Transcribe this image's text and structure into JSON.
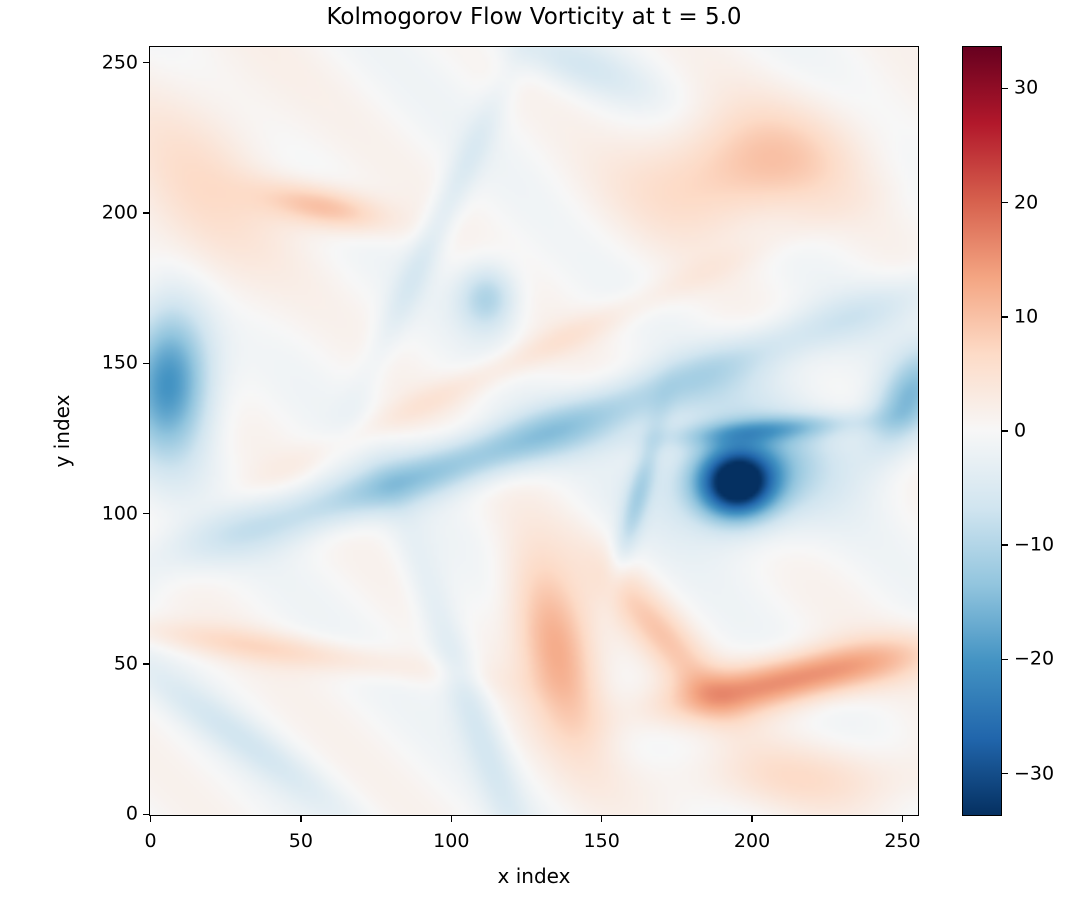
{
  "chart_data": {
    "type": "heatmap",
    "title": "Kolmogorov Flow Vorticity at t = 5.0",
    "xlabel": "x index",
    "ylabel": "y index",
    "grid_size": [
      256,
      256
    ],
    "xlim": [
      -0.5,
      255.5
    ],
    "ylim": [
      -0.5,
      255.5
    ],
    "origin": "lower",
    "grid": false,
    "colormap": "RdBu_r",
    "colormap_stops": [
      "#053061",
      "#2166ac",
      "#4393c3",
      "#92c5de",
      "#d1e5f0",
      "#f7f7f7",
      "#fddbc7",
      "#f4a582",
      "#d6604d",
      "#b2182b",
      "#67001f"
    ],
    "vmin": -33.7,
    "vmax": 33.7,
    "xticks": [
      0,
      50,
      100,
      150,
      200,
      250
    ],
    "yticks": [
      0,
      50,
      100,
      150,
      200,
      250
    ],
    "colorbar_ticks": [
      30,
      20,
      10,
      0,
      -10,
      -20,
      -30
    ],
    "colorbar_tick_labels": [
      "30",
      "20",
      "10",
      "0",
      "−10",
      "−20",
      "−30"
    ],
    "features": [
      {
        "label": "strong negative vortex core",
        "x": 195,
        "y": 110,
        "amp": -33,
        "sx": 9,
        "sy": 8,
        "angle": 0
      },
      {
        "label": "vortex halo",
        "x": 200,
        "y": 115,
        "amp": -12,
        "sx": 22,
        "sy": 14,
        "angle": 10
      },
      {
        "label": "spiral arm upper",
        "x": 205,
        "y": 128,
        "amp": -10,
        "sx": 22,
        "sy": 3,
        "angle": 5
      },
      {
        "label": "spiral arm left",
        "x": 162,
        "y": 105,
        "amp": -8,
        "sx": 3,
        "sy": 18,
        "angle": -15
      },
      {
        "label": "right edge negative",
        "x": 252,
        "y": 138,
        "amp": -14,
        "sx": 7,
        "sy": 14,
        "angle": -30
      },
      {
        "label": "left edge negative vortex",
        "x": 6,
        "y": 145,
        "amp": -22,
        "sx": 10,
        "sy": 18,
        "angle": 0
      },
      {
        "label": "diagonal negative band",
        "x": 150,
        "y": 135,
        "amp": -9,
        "sx": 95,
        "sy": 6,
        "angle": 20
      },
      {
        "label": "diagonal negative band lower",
        "x": 100,
        "y": 115,
        "amp": -6,
        "sx": 70,
        "sy": 6,
        "angle": 15
      },
      {
        "label": "small negative blob",
        "x": 112,
        "y": 172,
        "amp": -11,
        "sx": 7,
        "sy": 8,
        "angle": 0
      },
      {
        "label": "negative filament",
        "x": 95,
        "y": 195,
        "amp": -5,
        "sx": 4,
        "sy": 40,
        "angle": -25
      },
      {
        "label": "top negative",
        "x": 140,
        "y": 250,
        "amp": -5,
        "sx": 20,
        "sy": 6,
        "angle": -20
      },
      {
        "label": "lower negative filament",
        "x": 105,
        "y": 40,
        "amp": -6,
        "sx": 5,
        "sy": 40,
        "angle": 20
      },
      {
        "label": "lower-left negative",
        "x": 30,
        "y": 25,
        "amp": -5,
        "sx": 30,
        "sy": 5,
        "angle": -35
      },
      {
        "label": "positive lobe",
        "x": 135,
        "y": 55,
        "amp": 14,
        "sx": 9,
        "sy": 22,
        "angle": 15
      },
      {
        "label": "positive elongated band",
        "x": 215,
        "y": 45,
        "amp": 17,
        "sx": 30,
        "sy": 6,
        "angle": 12
      },
      {
        "label": "positive band tail",
        "x": 170,
        "y": 60,
        "amp": 8,
        "sx": 6,
        "sy": 22,
        "angle": 40
      },
      {
        "label": "upper-right positive",
        "x": 198,
        "y": 215,
        "amp": 10,
        "sx": 26,
        "sy": 14,
        "angle": 10
      },
      {
        "label": "upper positive blob",
        "x": 58,
        "y": 202,
        "amp": 11,
        "sx": 15,
        "sy": 5,
        "angle": -12
      },
      {
        "label": "upper-left positive",
        "x": 15,
        "y": 205,
        "amp": 5,
        "sx": 20,
        "sy": 30,
        "angle": 0
      },
      {
        "label": "lower-left positive stripe",
        "x": 40,
        "y": 55,
        "amp": 6,
        "sx": 40,
        "sy": 4,
        "angle": -8
      },
      {
        "label": "bottom positive",
        "x": 220,
        "y": 12,
        "amp": 5,
        "sx": 35,
        "sy": 8,
        "angle": 0
      },
      {
        "label": "central positive filament",
        "x": 120,
        "y": 150,
        "amp": 4,
        "sx": 60,
        "sy": 4,
        "angle": 25
      }
    ]
  }
}
